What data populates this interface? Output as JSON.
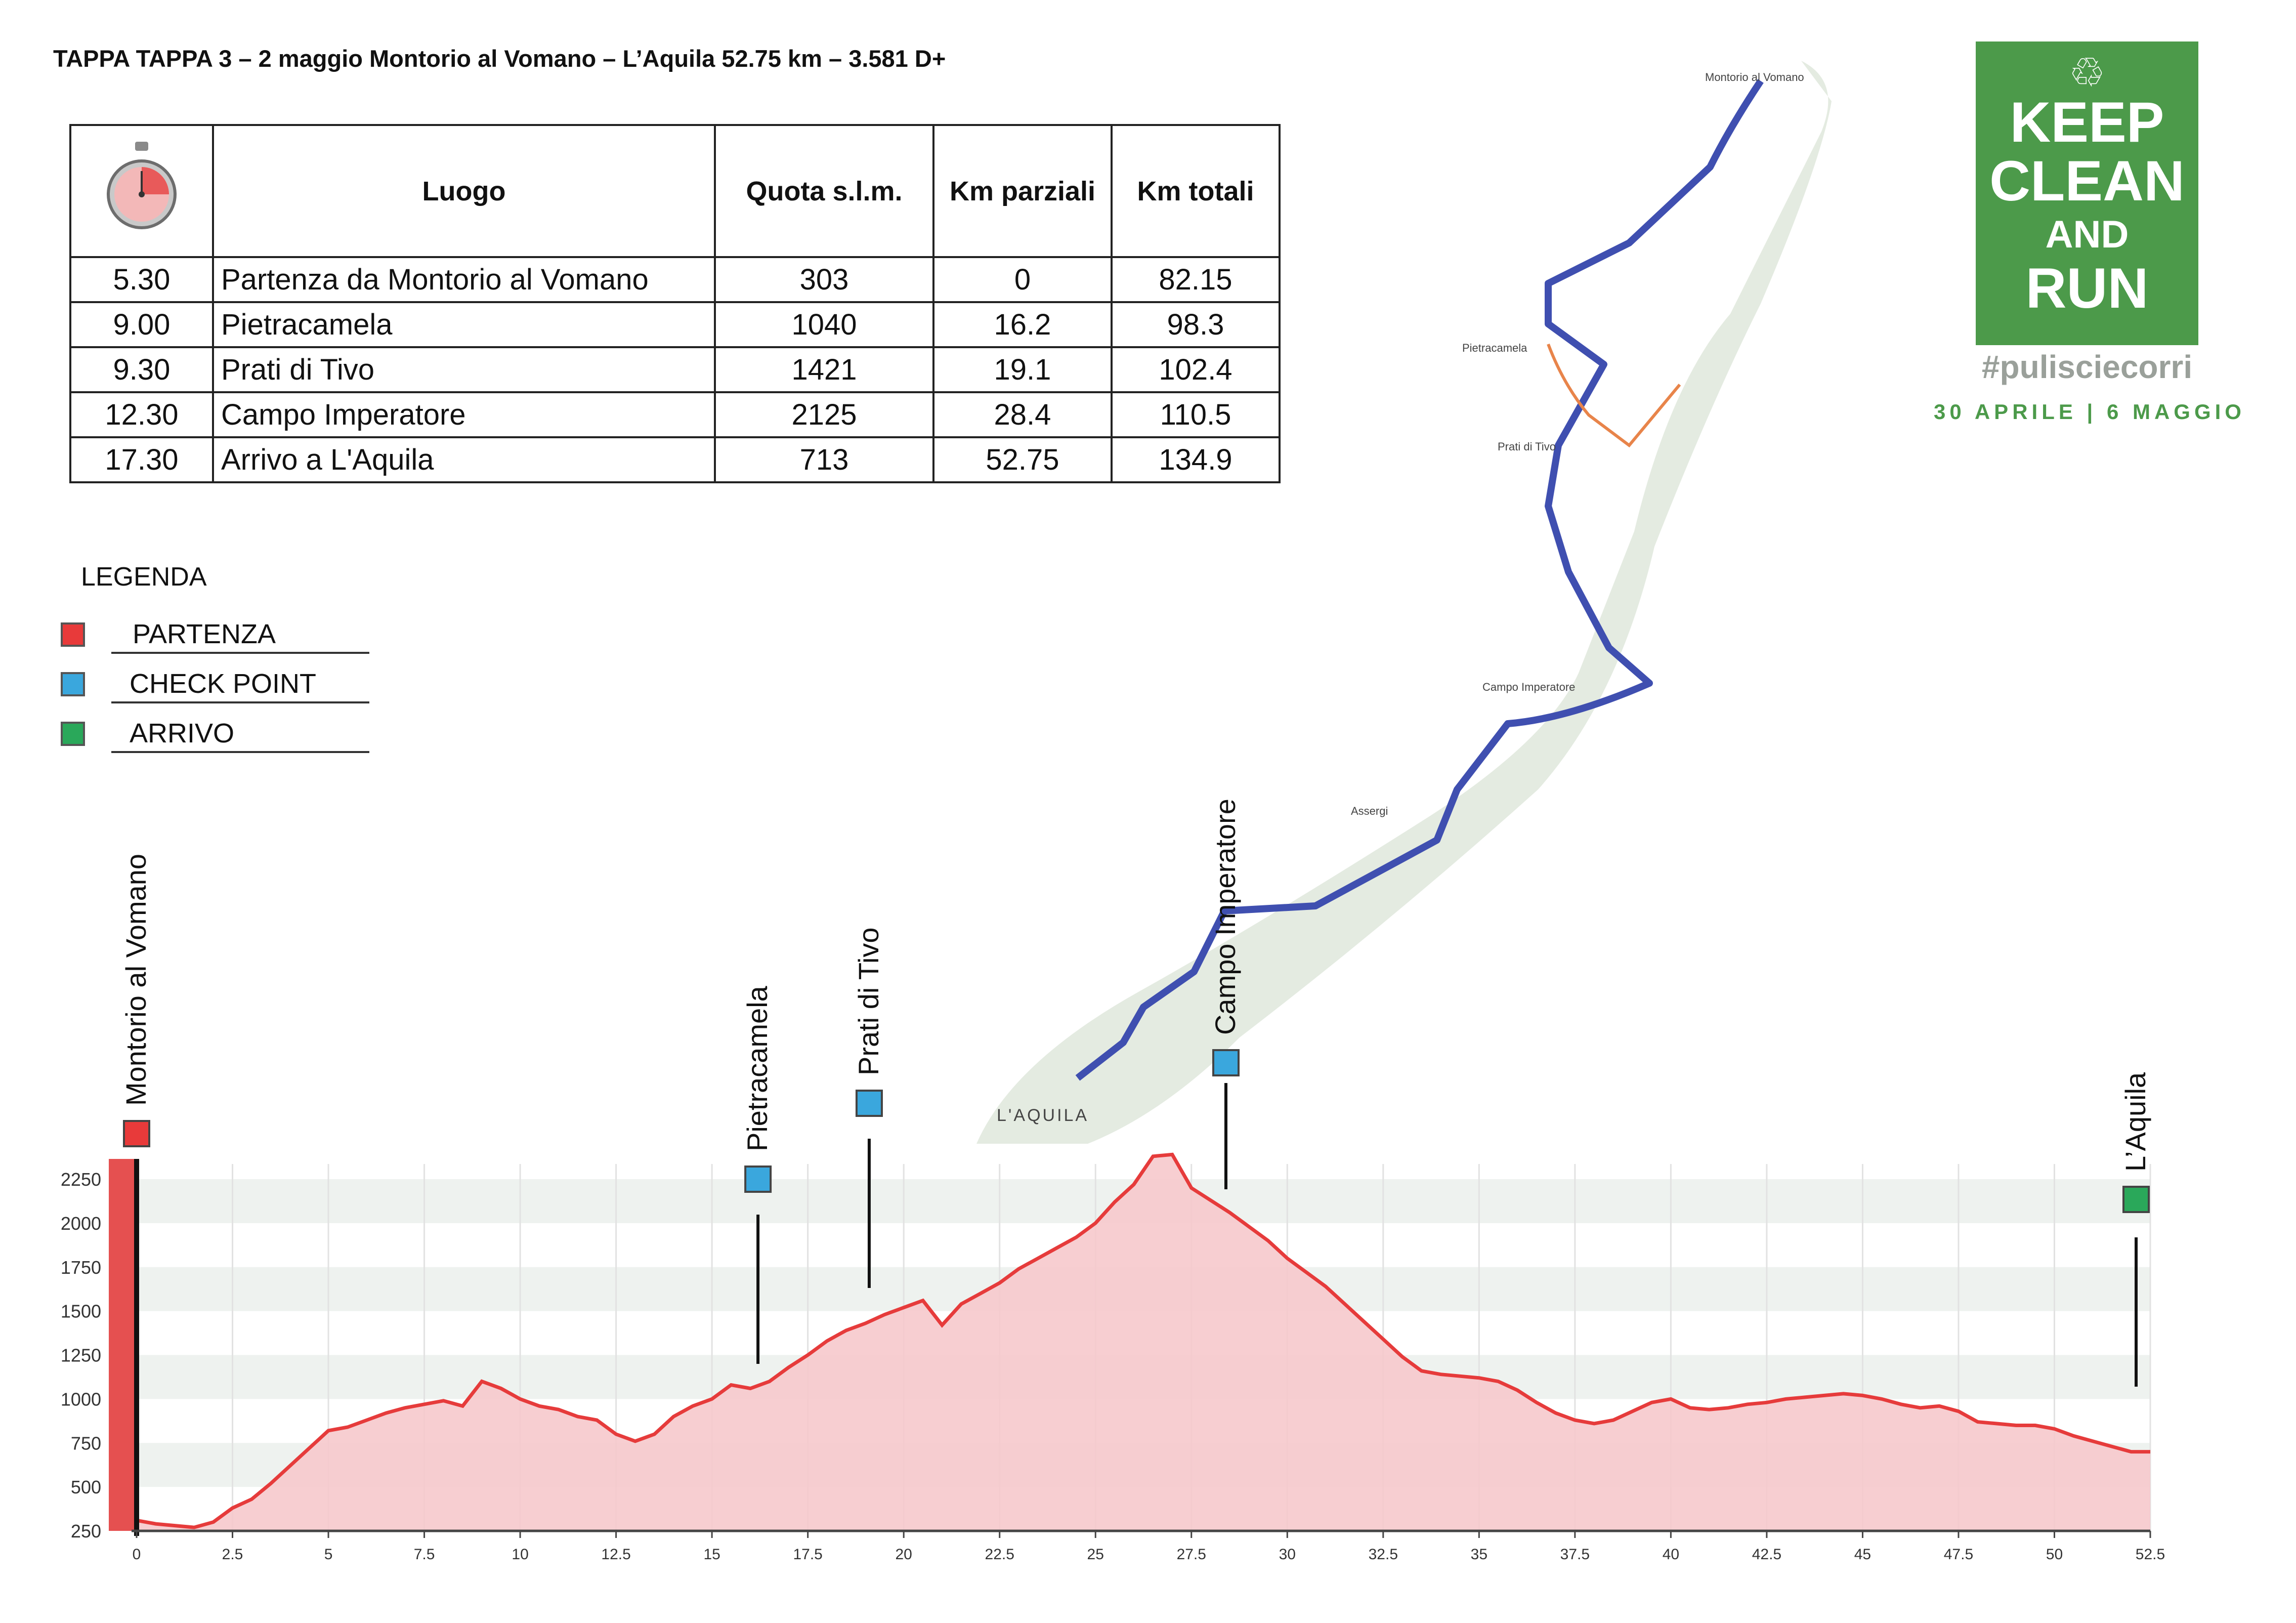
{
  "title": "TAPPA TAPPA 3 – 2 maggio Montorio al Vomano – L’Aquila  52.75 km – 3.581 D+",
  "table": {
    "headers": [
      "",
      "Luogo",
      "Quota s.l.m.",
      "Km parziali",
      "Km totali"
    ],
    "rows": [
      [
        "5.30",
        "Partenza da Montorio al Vomano",
        "303",
        "0",
        "82.15"
      ],
      [
        "9.00",
        "Pietracamela",
        "1040",
        "16.2",
        "98.3"
      ],
      [
        "9.30",
        "Prati di Tivo",
        "1421",
        "19.1",
        "102.4"
      ],
      [
        "12.30",
        "Campo Imperatore",
        "2125",
        "28.4",
        "110.5"
      ],
      [
        "17.30",
        "Arrivo a L'Aquila",
        "713",
        "52.75",
        "134.9"
      ]
    ]
  },
  "legend": {
    "title": "LEGENDA",
    "items": [
      {
        "label": "PARTENZA",
        "color": "#e83a3a"
      },
      {
        "label": "CHECK POINT",
        "color": "#3aa7dd"
      },
      {
        "label": "ARRIVO",
        "color": "#2aa85a"
      }
    ]
  },
  "logo": {
    "lines": [
      "KEEP",
      "CLEAN",
      "AND",
      "RUN"
    ],
    "hashtag": "#pulisciecorri",
    "dates": "30 APRILE | 6 MAGGIO"
  },
  "map_labels": [
    "Montorio al Vomano",
    "Pietracamela",
    "Prati di Tivo",
    "Campo Imperatore",
    "Assergi",
    "L'AQUILA"
  ],
  "chart_data": {
    "type": "area",
    "xlim": [
      0,
      52.5
    ],
    "ylim": [
      250,
      2250
    ],
    "xticks": [
      0,
      2.5,
      5,
      7.5,
      10,
      12.5,
      15,
      17.5,
      20,
      22.5,
      25,
      27.5,
      30,
      32.5,
      35,
      37.5,
      40,
      42.5,
      45,
      47.5,
      50,
      52.5
    ],
    "yticks": [
      250,
      500,
      750,
      1000,
      1250,
      1500,
      1750,
      2000,
      2250
    ],
    "x": [
      0,
      0.5,
      1,
      1.5,
      2,
      2.5,
      3,
      3.5,
      4,
      4.5,
      5,
      5.5,
      6,
      6.5,
      7,
      7.5,
      8,
      8.5,
      9,
      9.5,
      10,
      10.5,
      11,
      11.5,
      12,
      12.5,
      13,
      13.5,
      14,
      14.5,
      15,
      15.5,
      16,
      16.5,
      17,
      17.5,
      18,
      18.5,
      19,
      19.5,
      20,
      20.5,
      21,
      21.5,
      22,
      22.5,
      23,
      23.5,
      24,
      24.5,
      25,
      25.5,
      26,
      26.5,
      27,
      27.5,
      28,
      28.5,
      29,
      29.5,
      30,
      30.5,
      31,
      31.5,
      32,
      32.5,
      33,
      33.5,
      34,
      34.5,
      35,
      35.5,
      36,
      36.5,
      37,
      37.5,
      38,
      38.5,
      39,
      39.5,
      40,
      40.5,
      41,
      41.5,
      42,
      42.5,
      43,
      43.5,
      44,
      44.5,
      45,
      45.5,
      46,
      46.5,
      47,
      47.5,
      48,
      48.5,
      49,
      49.5,
      50,
      50.5,
      51,
      51.5,
      52,
      52.5
    ],
    "y": [
      310,
      290,
      280,
      270,
      300,
      380,
      430,
      520,
      620,
      720,
      820,
      840,
      880,
      920,
      950,
      970,
      990,
      960,
      1100,
      1060,
      1000,
      960,
      940,
      900,
      880,
      800,
      760,
      800,
      900,
      960,
      1000,
      1080,
      1060,
      1100,
      1180,
      1250,
      1330,
      1390,
      1430,
      1480,
      1520,
      1560,
      1420,
      1540,
      1600,
      1660,
      1740,
      1800,
      1860,
      1920,
      2000,
      2120,
      2220,
      2380,
      2390,
      2200,
      2130,
      2060,
      1980,
      1900,
      1800,
      1720,
      1640,
      1540,
      1440,
      1340,
      1240,
      1160,
      1140,
      1130,
      1120,
      1100,
      1050,
      980,
      920,
      880,
      860,
      880,
      930,
      980,
      1000,
      950,
      940,
      950,
      970,
      980,
      1000,
      1010,
      1020,
      1030,
      1020,
      1000,
      970,
      950,
      960,
      930,
      870,
      860,
      850,
      850,
      830,
      790,
      760,
      730,
      700,
      700
    ],
    "markers": [
      {
        "label": "Montorio al Vomano",
        "km": 0,
        "type": "PARTENZA"
      },
      {
        "label": "Pietracamela",
        "km": 16.2,
        "type": "CHECK POINT"
      },
      {
        "label": "Prati di Tivo",
        "km": 19.1,
        "type": "CHECK POINT"
      },
      {
        "label": "Campo Imperatore",
        "km": 28.4,
        "type": "CHECK POINT"
      },
      {
        "label": "L’Aquila",
        "km": 52.75,
        "type": "ARRIVO"
      }
    ],
    "line_color": "#e63b3b",
    "fill_color": "#f6c9cc"
  }
}
